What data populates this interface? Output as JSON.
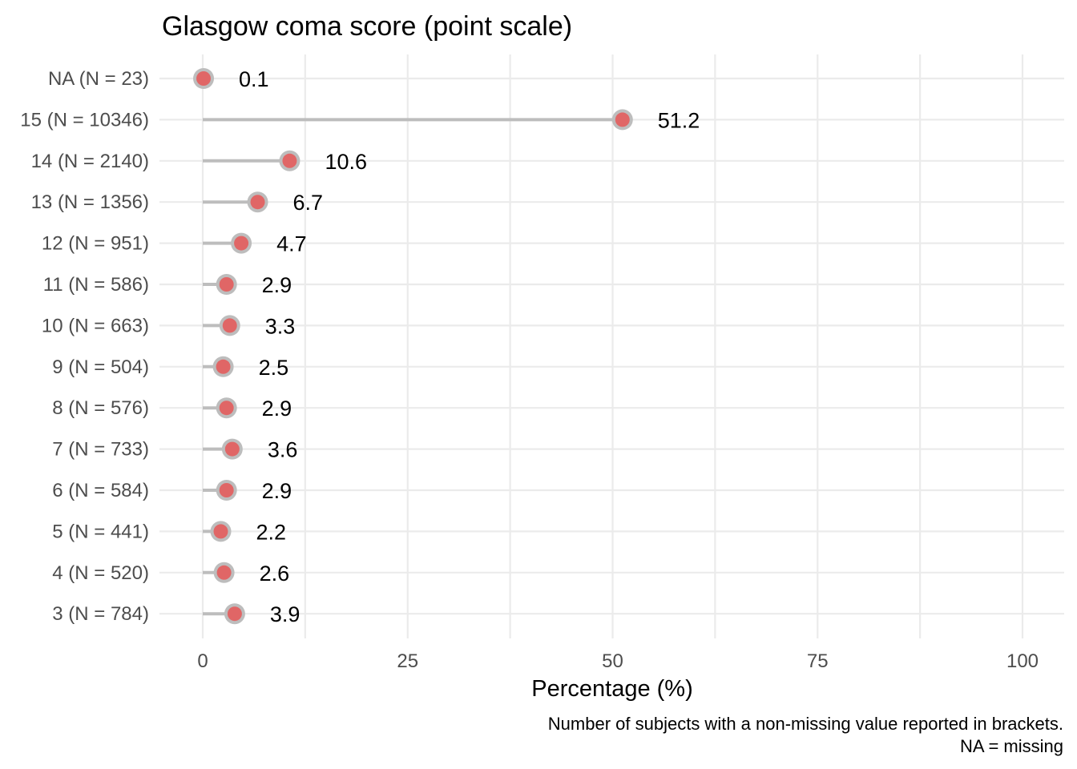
{
  "chart_data": {
    "type": "lollipop",
    "title": "Glasgow coma score (point scale)",
    "xlabel": "Percentage (%)",
    "ylabel": "",
    "xlim": [
      0,
      100
    ],
    "xticks": [
      "0",
      "25",
      "50",
      "75",
      "100"
    ],
    "xtick_values": [
      0,
      25,
      50,
      75,
      100
    ],
    "categories": [
      "NA (N = 23)",
      "15 (N = 10346)",
      "14 (N = 2140)",
      "13 (N = 1356)",
      "12 (N = 951)",
      "11 (N = 586)",
      "10 (N = 663)",
      "9 (N = 504)",
      "8 (N = 576)",
      "7 (N = 733)",
      "6 (N = 584)",
      "5 (N = 441)",
      "4 (N = 520)",
      "3 (N = 784)"
    ],
    "values": [
      0.1,
      51.2,
      10.6,
      6.7,
      4.7,
      2.9,
      3.3,
      2.5,
      2.9,
      3.6,
      2.9,
      2.2,
      2.6,
      3.9
    ],
    "value_labels": [
      "0.1",
      "51.2",
      "10.6",
      "6.7",
      "4.7",
      "2.9",
      "3.3",
      "2.5",
      "2.9",
      "3.6",
      "2.9",
      "2.2",
      "2.6",
      "3.9"
    ],
    "caption": [
      "Number of subjects with a non-missing value reported in brackets.",
      "NA = missing"
    ],
    "grid": true,
    "colors": {
      "point": "#e06666",
      "stem": "#bdbdbd",
      "grid": "#ebebeb"
    }
  }
}
